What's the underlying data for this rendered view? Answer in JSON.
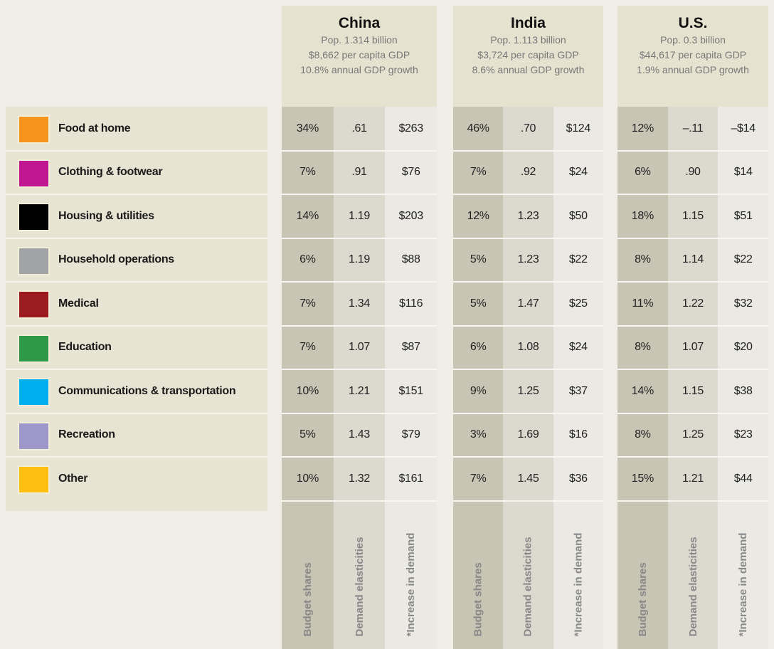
{
  "categories": [
    {
      "name": "Food at home",
      "color": "#f7941d"
    },
    {
      "name": "Clothing & footwear",
      "color": "#c0168f"
    },
    {
      "name": "Housing & utilities",
      "color": "#000000"
    },
    {
      "name": "Household operations",
      "color": "#a0a2a5"
    },
    {
      "name": "Medical",
      "color": "#9b1b1f"
    },
    {
      "name": "Education",
      "color": "#2e9a47"
    },
    {
      "name": "Communications & transportation",
      "color": "#00aeef"
    },
    {
      "name": "Recreation",
      "color": "#9e97c9"
    },
    {
      "name": "Other",
      "color": "#fdc010"
    }
  ],
  "columns": [
    "Budget shares",
    "Demand elasticities",
    "*Increase in demand"
  ],
  "countries": [
    {
      "name": "China",
      "pop": "Pop. 1.314 billion",
      "gdp": "$8,662 per capita GDP",
      "growth": "10.8% annual GDP growth",
      "rows": [
        [
          "34%",
          ".61",
          "$263"
        ],
        [
          "7%",
          ".91",
          "$76"
        ],
        [
          "14%",
          "1.19",
          "$203"
        ],
        [
          "6%",
          "1.19",
          "$88"
        ],
        [
          "7%",
          "1.34",
          "$116"
        ],
        [
          "7%",
          "1.07",
          "$87"
        ],
        [
          "10%",
          "1.21",
          "$151"
        ],
        [
          "5%",
          "1.43",
          "$79"
        ],
        [
          "10%",
          "1.32",
          "$161"
        ]
      ]
    },
    {
      "name": "India",
      "pop": "Pop. 1.113 billion",
      "gdp": "$3,724 per capita GDP",
      "growth": "8.6% annual GDP growth",
      "rows": [
        [
          "46%",
          ".70",
          "$124"
        ],
        [
          "7%",
          ".92",
          "$24"
        ],
        [
          "12%",
          "1.23",
          "$50"
        ],
        [
          "5%",
          "1.23",
          "$22"
        ],
        [
          "5%",
          "1.47",
          "$25"
        ],
        [
          "6%",
          "1.08",
          "$24"
        ],
        [
          "9%",
          "1.25",
          "$37"
        ],
        [
          "3%",
          "1.69",
          "$16"
        ],
        [
          "7%",
          "1.45",
          "$36"
        ]
      ]
    },
    {
      "name": "U.S.",
      "pop": "Pop. 0.3 billion",
      "gdp": "$44,617 per capita GDP",
      "growth": "1.9% annual GDP growth",
      "rows": [
        [
          "12%",
          "–.11",
          "–$14"
        ],
        [
          "6%",
          ".90",
          "$14"
        ],
        [
          "18%",
          "1.15",
          "$51"
        ],
        [
          "8%",
          "1.14",
          "$22"
        ],
        [
          "11%",
          "1.22",
          "$32"
        ],
        [
          "8%",
          "1.07",
          "$20"
        ],
        [
          "14%",
          "1.15",
          "$38"
        ],
        [
          "8%",
          "1.25",
          "$23"
        ],
        [
          "15%",
          "1.21",
          "$44"
        ]
      ]
    }
  ]
}
